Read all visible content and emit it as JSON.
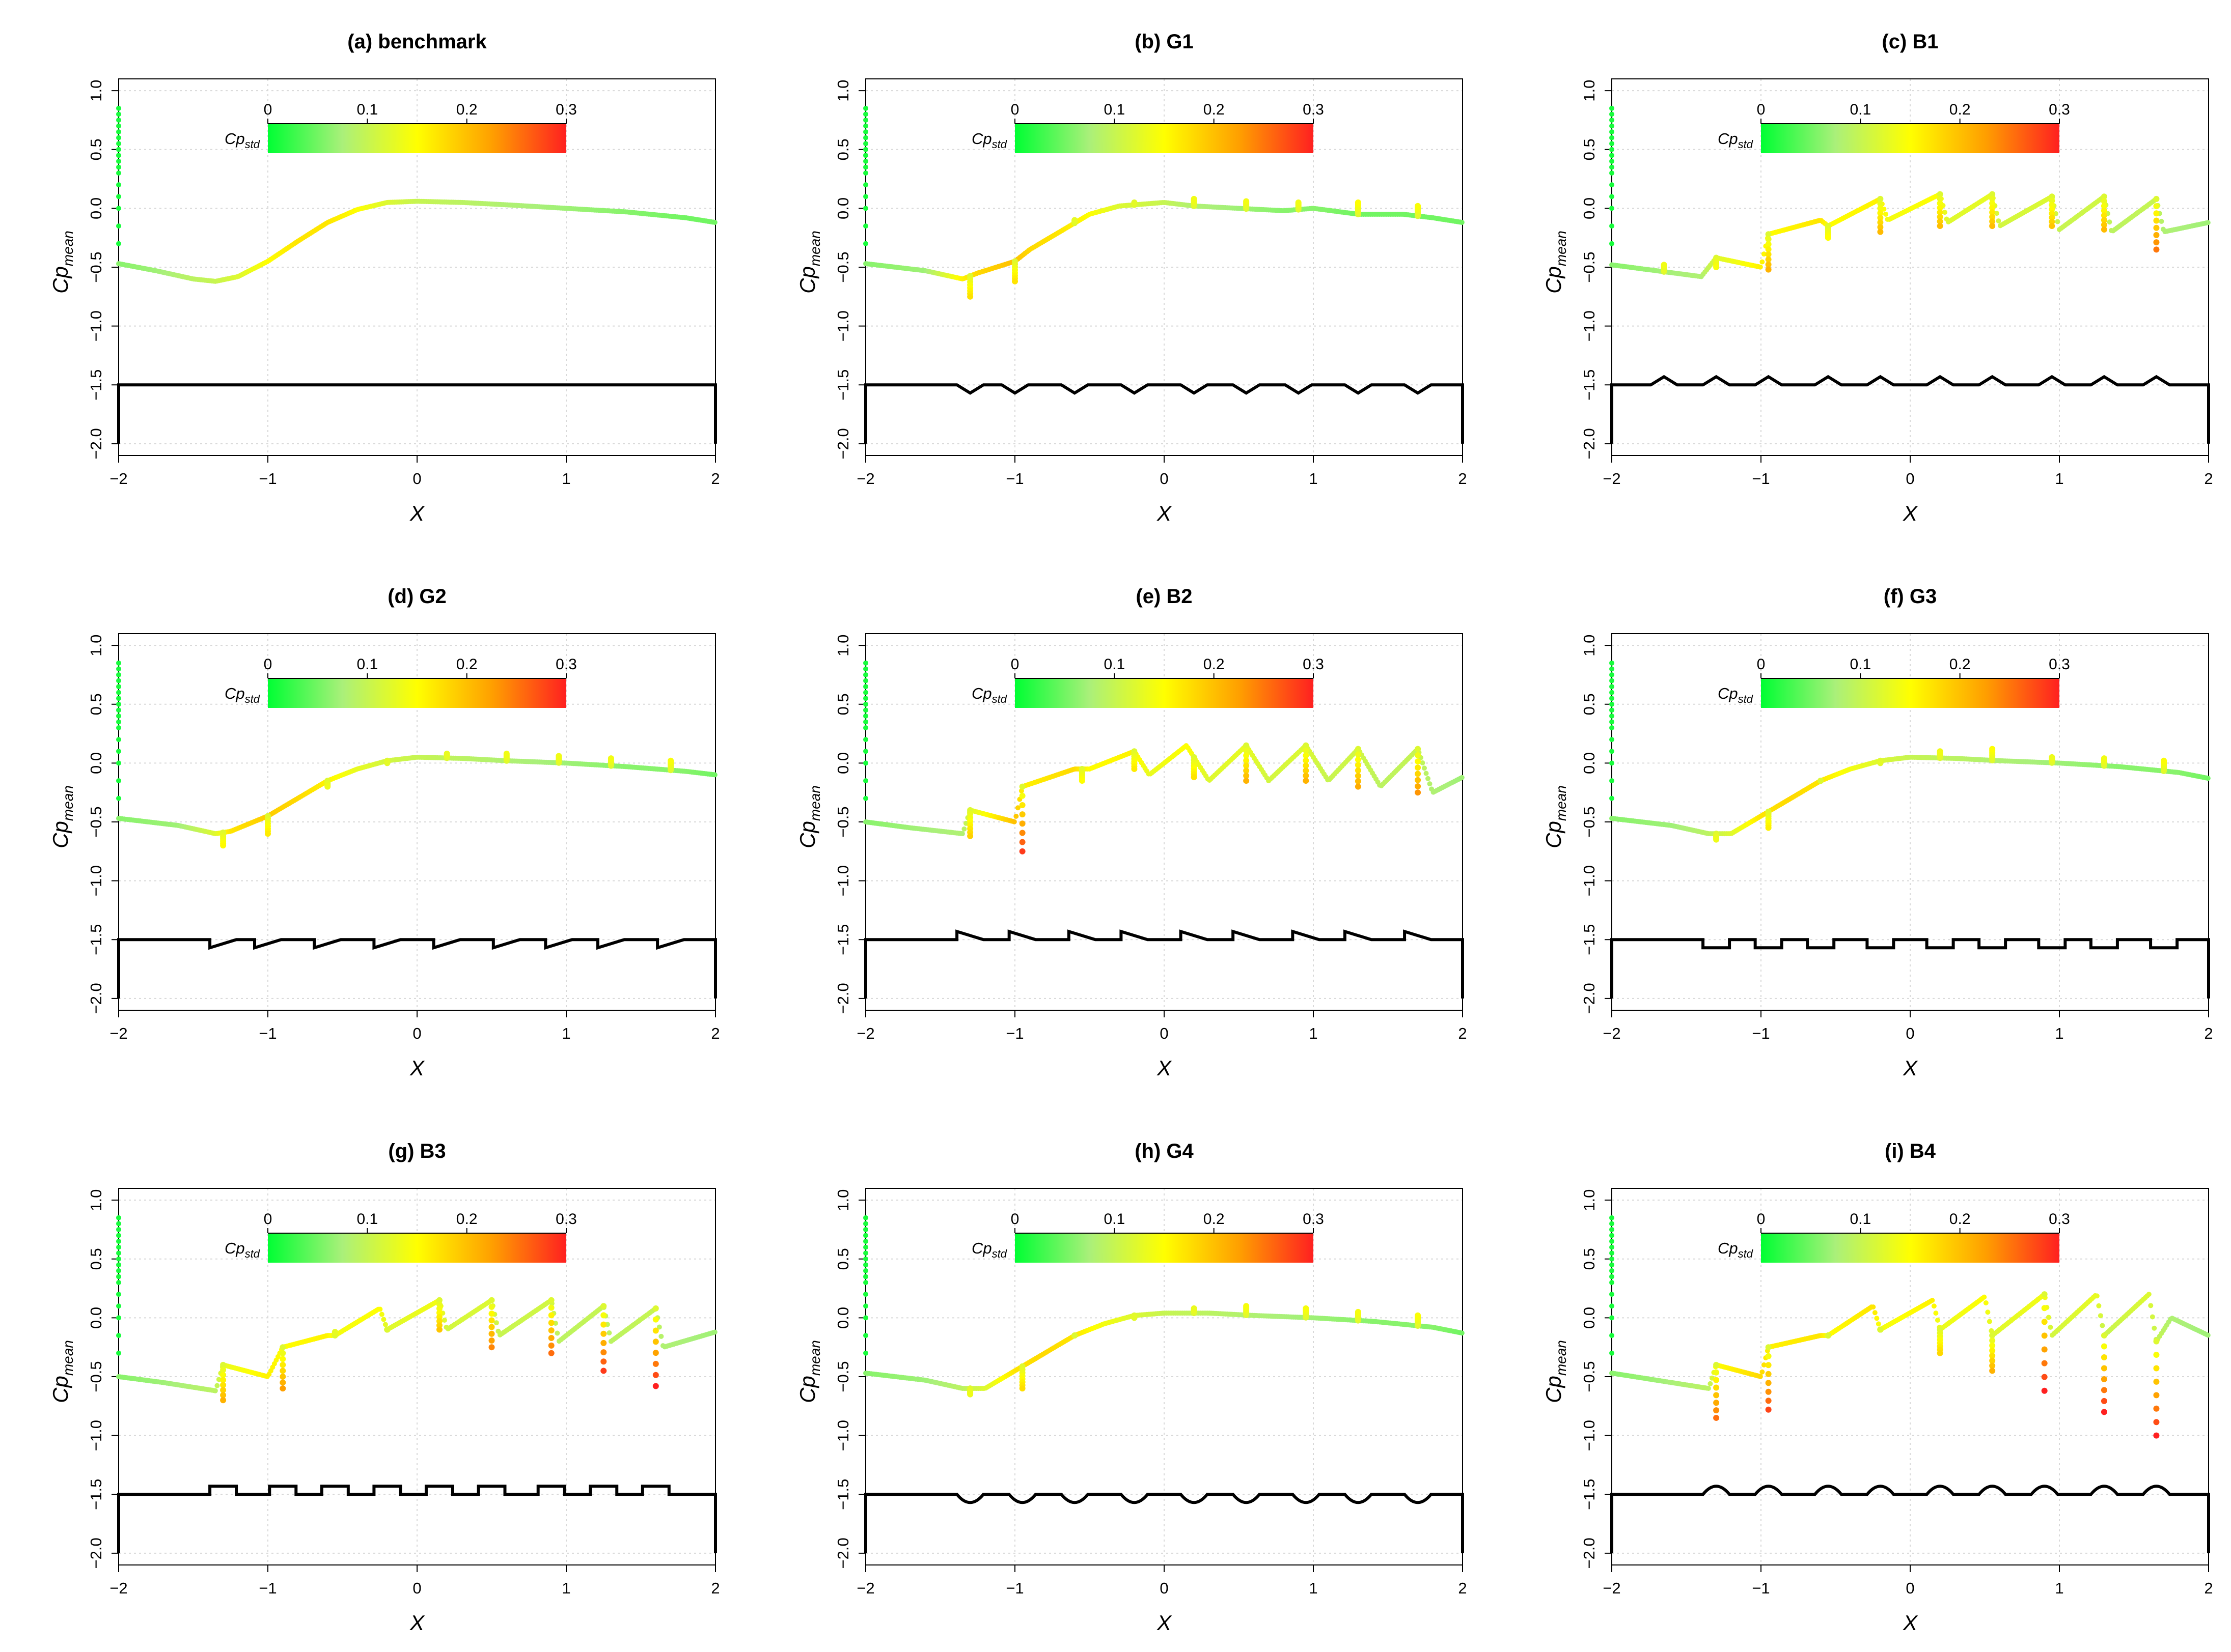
{
  "chart_data": {
    "type": "scatter",
    "layout": "3x3 grid",
    "shared": {
      "xlabel": "X",
      "ylabel_main": "Cp",
      "ylabel_sub": "mean",
      "xlim": [
        -2.0,
        2.0
      ],
      "ylim": [
        -2.1,
        1.1
      ],
      "xticks": [
        -2,
        -1,
        0,
        1,
        2
      ],
      "xtick_labels": [
        "−2",
        "−1",
        "0",
        "1",
        "2"
      ],
      "yticks": [
        1.0,
        0.5,
        0.0,
        -0.5,
        -1.0,
        -1.5,
        -2.0
      ],
      "ytick_labels": [
        "1.0",
        "0.5",
        "0.0",
        "−0.5",
        "−1.0",
        "−1.5",
        "−2.0"
      ],
      "grid": true,
      "colorbar": {
        "title_main": "Cp",
        "title_sub": "std",
        "range": [
          0,
          0.3
        ],
        "ticks": [
          0,
          0.1,
          0.2,
          0.3
        ],
        "tick_labels": [
          "0",
          "0.1",
          "0.2",
          "0.3"
        ],
        "colors": [
          "#00ff33",
          "#aaf07a",
          "#ffff00",
          "#ffa000",
          "#ff2020"
        ]
      },
      "wall_line_color": "#000000"
    },
    "panels": [
      {
        "id": "a",
        "title": "(a) benchmark",
        "shape": "flat",
        "spikes": [],
        "spike_depths": [],
        "series": [
          {
            "name": "Cp_mean",
            "x": [
              -2.0,
              -1.75,
              -1.5,
              -1.35,
              -1.2,
              -1.0,
              -0.8,
              -0.6,
              -0.4,
              -0.2,
              0.0,
              0.3,
              0.6,
              1.0,
              1.4,
              1.8,
              2.0
            ],
            "y": [
              -0.47,
              -0.53,
              -0.6,
              -0.62,
              -0.58,
              -0.45,
              -0.28,
              -0.12,
              -0.01,
              0.05,
              0.06,
              0.05,
              0.03,
              0.0,
              -0.03,
              -0.08,
              -0.12
            ],
            "std": [
              0.06,
              0.07,
              0.09,
              0.1,
              0.12,
              0.15,
              0.17,
              0.17,
              0.15,
              0.12,
              0.1,
              0.09,
              0.08,
              0.07,
              0.06,
              0.05,
              0.05
            ]
          }
        ]
      },
      {
        "id": "b",
        "title": "(b) G1",
        "shape": "groove-triangle",
        "spikes": [
          -1.3,
          -1.0,
          -0.6,
          -0.2,
          0.2,
          0.55,
          0.9,
          1.3,
          1.7
        ],
        "spike_depths": [
          -0.75,
          -0.62,
          -0.1,
          0.05,
          0.08,
          0.06,
          0.05,
          0.05,
          0.02
        ],
        "series": [
          {
            "name": "Cp_mean",
            "x": [
              -2.0,
              -1.6,
              -1.35,
              -1.25,
              -1.0,
              -0.9,
              -0.7,
              -0.5,
              -0.3,
              0.0,
              0.2,
              0.5,
              0.8,
              1.0,
              1.3,
              1.6,
              1.8,
              2.0
            ],
            "y": [
              -0.47,
              -0.53,
              -0.6,
              -0.55,
              -0.45,
              -0.35,
              -0.2,
              -0.05,
              0.02,
              0.05,
              0.02,
              0.0,
              -0.02,
              0.0,
              -0.05,
              -0.05,
              -0.08,
              -0.12
            ],
            "std": [
              0.06,
              0.07,
              0.16,
              0.18,
              0.2,
              0.18,
              0.17,
              0.15,
              0.12,
              0.1,
              0.08,
              0.07,
              0.06,
              0.06,
              0.05,
              0.05,
              0.05,
              0.05
            ]
          }
        ]
      },
      {
        "id": "c",
        "title": "(c) B1",
        "shape": "bump-triangle",
        "spikes": [
          -1.65,
          -1.3,
          -0.95,
          -0.55,
          -0.2,
          0.2,
          0.55,
          0.95,
          1.3,
          1.65
        ],
        "spike_depths": [
          -0.48,
          -0.5,
          -0.52,
          -0.25,
          -0.2,
          -0.15,
          -0.15,
          -0.15,
          -0.18,
          -0.35
        ],
        "series": [
          {
            "name": "Cp_mean",
            "x": [
              -2.0,
              -1.7,
              -1.4,
              -1.3,
              -1.0,
              -0.95,
              -0.6,
              -0.55,
              -0.2,
              -0.15,
              0.2,
              0.25,
              0.55,
              0.6,
              0.95,
              1.0,
              1.3,
              1.35,
              1.65,
              1.7,
              2.0
            ],
            "y": [
              -0.48,
              -0.53,
              -0.58,
              -0.42,
              -0.5,
              -0.22,
              -0.1,
              -0.15,
              0.08,
              -0.1,
              0.12,
              -0.12,
              0.12,
              -0.15,
              0.1,
              -0.18,
              0.1,
              -0.2,
              0.08,
              -0.2,
              -0.12
            ],
            "std": [
              0.06,
              0.07,
              0.08,
              0.12,
              0.16,
              0.15,
              0.17,
              0.15,
              0.16,
              0.14,
              0.15,
              0.12,
              0.13,
              0.11,
              0.12,
              0.1,
              0.11,
              0.09,
              0.1,
              0.08,
              0.07
            ]
          }
        ]
      },
      {
        "id": "d",
        "title": "(d) G2",
        "shape": "groove-sawtooth",
        "spikes": [
          -1.3,
          -1.0,
          -0.6,
          -0.2,
          0.2,
          0.6,
          0.95,
          1.3,
          1.7
        ],
        "spike_depths": [
          -0.7,
          -0.6,
          -0.2,
          0.0,
          0.08,
          0.08,
          0.06,
          0.04,
          0.02
        ],
        "series": [
          {
            "name": "Cp_mean",
            "x": [
              -2.0,
              -1.6,
              -1.35,
              -1.25,
              -1.0,
              -0.8,
              -0.6,
              -0.4,
              -0.2,
              0.0,
              0.3,
              0.6,
              1.0,
              1.4,
              1.8,
              2.0
            ],
            "y": [
              -0.47,
              -0.53,
              -0.6,
              -0.58,
              -0.45,
              -0.3,
              -0.15,
              -0.05,
              0.02,
              0.05,
              0.04,
              0.02,
              0.0,
              -0.03,
              -0.07,
              -0.1
            ],
            "std": [
              0.06,
              0.07,
              0.12,
              0.17,
              0.19,
              0.18,
              0.16,
              0.13,
              0.11,
              0.1,
              0.09,
              0.08,
              0.07,
              0.06,
              0.06,
              0.05
            ]
          }
        ]
      },
      {
        "id": "e",
        "title": "(e) B2",
        "shape": "bump-sawtooth",
        "spikes": [
          -1.3,
          -0.95,
          -0.55,
          -0.2,
          0.2,
          0.55,
          0.95,
          1.3,
          1.7
        ],
        "spike_depths": [
          -0.62,
          -0.75,
          -0.15,
          -0.05,
          -0.12,
          -0.15,
          -0.15,
          -0.2,
          -0.25
        ],
        "series": [
          {
            "name": "Cp_mean",
            "x": [
              -2.0,
              -1.7,
              -1.35,
              -1.3,
              -1.0,
              -0.95,
              -0.6,
              -0.5,
              -0.2,
              -0.1,
              0.15,
              0.3,
              0.55,
              0.7,
              0.95,
              1.1,
              1.3,
              1.45,
              1.7,
              1.8,
              2.0
            ],
            "y": [
              -0.5,
              -0.55,
              -0.6,
              -0.4,
              -0.5,
              -0.2,
              -0.05,
              -0.05,
              0.1,
              -0.1,
              0.15,
              -0.15,
              0.15,
              -0.15,
              0.15,
              -0.15,
              0.12,
              -0.2,
              0.12,
              -0.25,
              -0.12
            ],
            "std": [
              0.06,
              0.07,
              0.08,
              0.12,
              0.2,
              0.16,
              0.18,
              0.15,
              0.16,
              0.13,
              0.15,
              0.12,
              0.13,
              0.11,
              0.12,
              0.1,
              0.11,
              0.09,
              0.1,
              0.08,
              0.07
            ]
          }
        ]
      },
      {
        "id": "f",
        "title": "(f) G3",
        "shape": "groove-rect",
        "spikes": [
          -1.3,
          -0.95,
          -0.6,
          -0.2,
          0.2,
          0.55,
          0.95,
          1.3,
          1.7
        ],
        "spike_depths": [
          -0.65,
          -0.55,
          -0.15,
          0.0,
          0.1,
          0.12,
          0.05,
          0.04,
          0.02
        ],
        "series": [
          {
            "name": "Cp_mean",
            "x": [
              -2.0,
              -1.6,
              -1.35,
              -1.2,
              -1.0,
              -0.8,
              -0.6,
              -0.4,
              -0.2,
              0.0,
              0.3,
              0.6,
              1.0,
              1.4,
              1.8,
              2.0
            ],
            "y": [
              -0.47,
              -0.53,
              -0.6,
              -0.6,
              -0.45,
              -0.3,
              -0.15,
              -0.05,
              0.02,
              0.05,
              0.04,
              0.02,
              0.0,
              -0.03,
              -0.08,
              -0.13
            ],
            "std": [
              0.06,
              0.07,
              0.09,
              0.12,
              0.17,
              0.18,
              0.17,
              0.14,
              0.12,
              0.1,
              0.09,
              0.08,
              0.07,
              0.06,
              0.06,
              0.05
            ]
          }
        ]
      },
      {
        "id": "g",
        "title": "(g) B3",
        "shape": "bump-rect",
        "spikes": [
          -1.3,
          -0.9,
          -0.55,
          -0.2,
          0.15,
          0.5,
          0.9,
          1.25,
          1.6
        ],
        "spike_depths": [
          -0.7,
          -0.6,
          -0.12,
          -0.1,
          -0.1,
          -0.25,
          -0.3,
          -0.45,
          -0.58
        ],
        "series": [
          {
            "name": "Cp_mean",
            "x": [
              -2.0,
              -1.7,
              -1.35,
              -1.3,
              -1.0,
              -0.9,
              -0.6,
              -0.55,
              -0.25,
              -0.2,
              0.15,
              0.2,
              0.5,
              0.55,
              0.9,
              0.95,
              1.25,
              1.3,
              1.6,
              1.65,
              2.0
            ],
            "y": [
              -0.5,
              -0.55,
              -0.62,
              -0.4,
              -0.5,
              -0.25,
              -0.15,
              -0.15,
              0.08,
              -0.1,
              0.15,
              -0.1,
              0.15,
              -0.15,
              0.15,
              -0.2,
              0.1,
              -0.2,
              0.08,
              -0.25,
              -0.12
            ],
            "std": [
              0.06,
              0.07,
              0.09,
              0.13,
              0.16,
              0.15,
              0.16,
              0.14,
              0.15,
              0.12,
              0.14,
              0.11,
              0.12,
              0.1,
              0.11,
              0.09,
              0.1,
              0.09,
              0.1,
              0.08,
              0.07
            ]
          }
        ]
      },
      {
        "id": "h",
        "title": "(h) G4",
        "shape": "groove-round",
        "spikes": [
          -1.3,
          -0.95,
          -0.6,
          -0.2,
          0.2,
          0.55,
          0.95,
          1.3,
          1.7
        ],
        "spike_depths": [
          -0.65,
          -0.6,
          -0.15,
          0.0,
          0.08,
          0.1,
          0.08,
          0.05,
          0.02
        ],
        "series": [
          {
            "name": "Cp_mean",
            "x": [
              -2.0,
              -1.6,
              -1.35,
              -1.2,
              -1.0,
              -0.8,
              -0.6,
              -0.4,
              -0.2,
              0.0,
              0.3,
              0.6,
              1.0,
              1.4,
              1.8,
              2.0
            ],
            "y": [
              -0.47,
              -0.53,
              -0.6,
              -0.6,
              -0.45,
              -0.3,
              -0.15,
              -0.05,
              0.02,
              0.04,
              0.04,
              0.02,
              0.0,
              -0.03,
              -0.08,
              -0.13
            ],
            "std": [
              0.06,
              0.07,
              0.09,
              0.12,
              0.17,
              0.18,
              0.17,
              0.14,
              0.12,
              0.1,
              0.09,
              0.08,
              0.07,
              0.06,
              0.06,
              0.05
            ]
          }
        ]
      },
      {
        "id": "i",
        "title": "(i) B4",
        "shape": "bump-round",
        "spikes": [
          -1.3,
          -0.95,
          -0.55,
          -0.2,
          0.2,
          0.55,
          0.9,
          1.3,
          1.65
        ],
        "spike_depths": [
          -0.85,
          -0.78,
          -0.15,
          -0.1,
          -0.3,
          -0.45,
          -0.62,
          -0.8,
          -1.0
        ],
        "series": [
          {
            "name": "Cp_mean",
            "x": [
              -2.0,
              -1.7,
              -1.35,
              -1.3,
              -1.0,
              -0.95,
              -0.6,
              -0.55,
              -0.25,
              -0.2,
              0.15,
              0.2,
              0.5,
              0.55,
              0.9,
              0.95,
              1.25,
              1.3,
              1.6,
              1.65,
              1.75,
              2.0
            ],
            "y": [
              -0.47,
              -0.53,
              -0.6,
              -0.4,
              -0.5,
              -0.25,
              -0.15,
              -0.15,
              0.1,
              -0.1,
              0.15,
              -0.1,
              0.18,
              -0.15,
              0.2,
              -0.15,
              0.2,
              -0.15,
              0.2,
              -0.2,
              0.0,
              -0.15
            ],
            "std": [
              0.06,
              0.07,
              0.09,
              0.15,
              0.18,
              0.16,
              0.17,
              0.15,
              0.17,
              0.14,
              0.16,
              0.13,
              0.15,
              0.12,
              0.14,
              0.11,
              0.13,
              0.1,
              0.12,
              0.1,
              0.08,
              0.07
            ]
          }
        ]
      }
    ]
  }
}
